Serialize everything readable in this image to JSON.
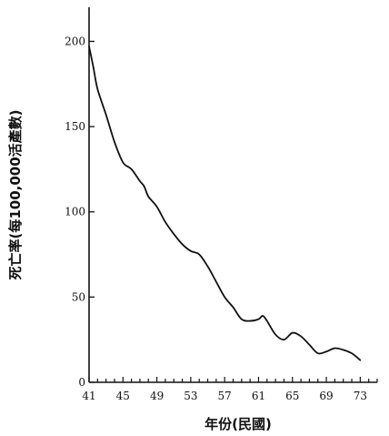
{
  "chart_data": {
    "type": "line",
    "title": "",
    "xlabel": "年份(民國)",
    "ylabel": "死亡率(每100,000活產數)",
    "xlim": [
      41,
      75
    ],
    "ylim": [
      0,
      220
    ],
    "x_ticks": [
      41,
      45,
      49,
      53,
      57,
      61,
      65,
      69,
      73
    ],
    "x_tick_labels": [
      "41",
      "45",
      "49",
      "53",
      "57",
      "61",
      "65",
      "69",
      "73"
    ],
    "y_ticks": [
      0,
      50,
      100,
      150,
      200
    ],
    "y_tick_labels": [
      "0",
      "50",
      "100",
      "150",
      "200"
    ],
    "grid": false,
    "legend": "none",
    "line_color": "#111111",
    "series": [
      {
        "x": [
          41,
          41.5,
          42,
          43,
          44,
          45,
          46,
          47,
          47.5,
          48,
          49,
          50,
          51,
          52,
          53,
          54,
          55,
          56,
          57,
          58,
          59,
          60,
          61,
          61.5,
          62,
          63,
          64,
          65,
          66,
          67,
          68,
          69,
          70,
          71,
          72,
          73
        ],
        "values": [
          197,
          185,
          172,
          157,
          141,
          129,
          125,
          118,
          115,
          109,
          103,
          94,
          87,
          81,
          77,
          75,
          68,
          59,
          50,
          44,
          37,
          36,
          37,
          39,
          36,
          28,
          25,
          29,
          27,
          22,
          17,
          18,
          20,
          19,
          17,
          13
        ]
      }
    ]
  }
}
